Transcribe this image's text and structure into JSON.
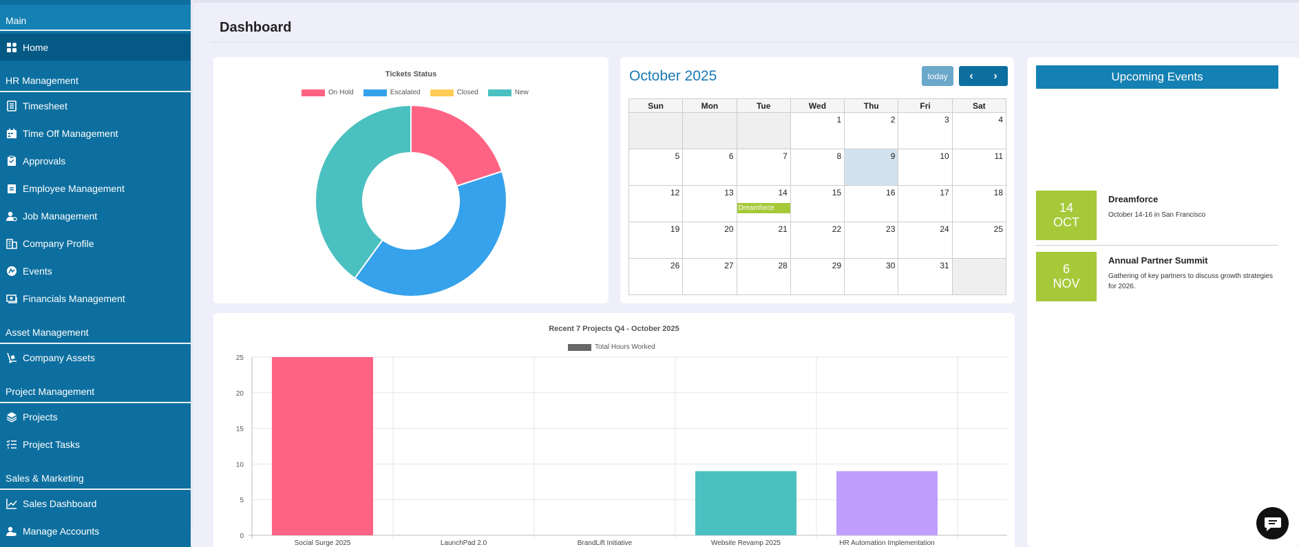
{
  "sidebar": {
    "sections": [
      "Main",
      "HR Management",
      "Asset Management",
      "Project Management",
      "Sales & Marketing"
    ],
    "items": [
      {
        "label": "Home",
        "icon": "grid-icon"
      },
      {
        "label": "Timesheet",
        "icon": "timesheet-icon"
      },
      {
        "label": "Time Off Management",
        "icon": "calendar-icon"
      },
      {
        "label": "Approvals",
        "icon": "clipboard-icon"
      },
      {
        "label": "Employee Management",
        "icon": "clipboard-list-icon"
      },
      {
        "label": "Job Management",
        "icon": "user-gear-icon"
      },
      {
        "label": "Company Profile",
        "icon": "building-icon"
      },
      {
        "label": "Events",
        "icon": "events-icon"
      },
      {
        "label": "Financials Management",
        "icon": "money-icon"
      },
      {
        "label": "Company Assets",
        "icon": "dolly-icon"
      },
      {
        "label": "Projects",
        "icon": "layers-icon"
      },
      {
        "label": "Project Tasks",
        "icon": "task-list-icon"
      },
      {
        "label": "Sales Dashboard",
        "icon": "chart-line-icon"
      },
      {
        "label": "Manage Accounts",
        "icon": "user-settings-icon"
      }
    ]
  },
  "header": {
    "title": "Dashboard"
  },
  "calendar": {
    "title": "October 2025",
    "today_label": "today",
    "weekdays": [
      "Sun",
      "Mon",
      "Tue",
      "Wed",
      "Thu",
      "Fri",
      "Sat"
    ],
    "weeks": [
      [
        "",
        "",
        "",
        "1",
        "2",
        "3",
        "4"
      ],
      [
        "5",
        "6",
        "7",
        "8",
        "9",
        "10",
        "11"
      ],
      [
        "12",
        "13",
        "14",
        "15",
        "16",
        "17",
        "18"
      ],
      [
        "19",
        "20",
        "21",
        "22",
        "23",
        "24",
        "25"
      ],
      [
        "26",
        "27",
        "28",
        "29",
        "30",
        "31",
        ""
      ]
    ],
    "today_day": "9",
    "event": {
      "day": "14",
      "label": "Dreamforce"
    }
  },
  "upcoming": {
    "title": "Upcoming Events",
    "events": [
      {
        "day": "14",
        "month": "OCT",
        "title": "Dreamforce",
        "desc": "October 14-16 in San Francisco"
      },
      {
        "day": "6",
        "month": "NOV",
        "title": "Annual Partner Summit",
        "desc": "Gathering of key partners to discuss growth strategies for 2026."
      }
    ]
  },
  "colors": {
    "sidebar": "#0d6f9f",
    "accent": "#1480b3",
    "event": "#a6c93a"
  },
  "chart_data": [
    {
      "type": "pie",
      "title": "Tickets Status",
      "legend": "top",
      "categories": [
        "On Hold",
        "Escalated",
        "Closed",
        "New"
      ],
      "values": [
        2,
        4,
        0,
        4
      ],
      "colors": [
        "#ff6384",
        "#36a2eb",
        "#ffcd56",
        "#4bc0c0"
      ]
    },
    {
      "type": "bar",
      "title": "Recent 7 Projects Q4 - October 2025",
      "legend": "top",
      "series": [
        {
          "name": "Total Hours Worked",
          "values": [
            25,
            0,
            0,
            9,
            9
          ]
        }
      ],
      "categories": [
        "Social Surge 2025",
        "LaunchPad 2.0",
        "BrandLift Initiative",
        "Website Revamp 2025",
        "HR Automation Implementation"
      ],
      "colors": [
        "#ff6384",
        "#36a2eb",
        "#ffcd56",
        "#4bc0c0",
        "#c09efd"
      ],
      "yticks": [
        "0",
        "5",
        "10",
        "15",
        "20",
        "25"
      ],
      "ylim": [
        0,
        25
      ],
      "grid": true
    }
  ]
}
